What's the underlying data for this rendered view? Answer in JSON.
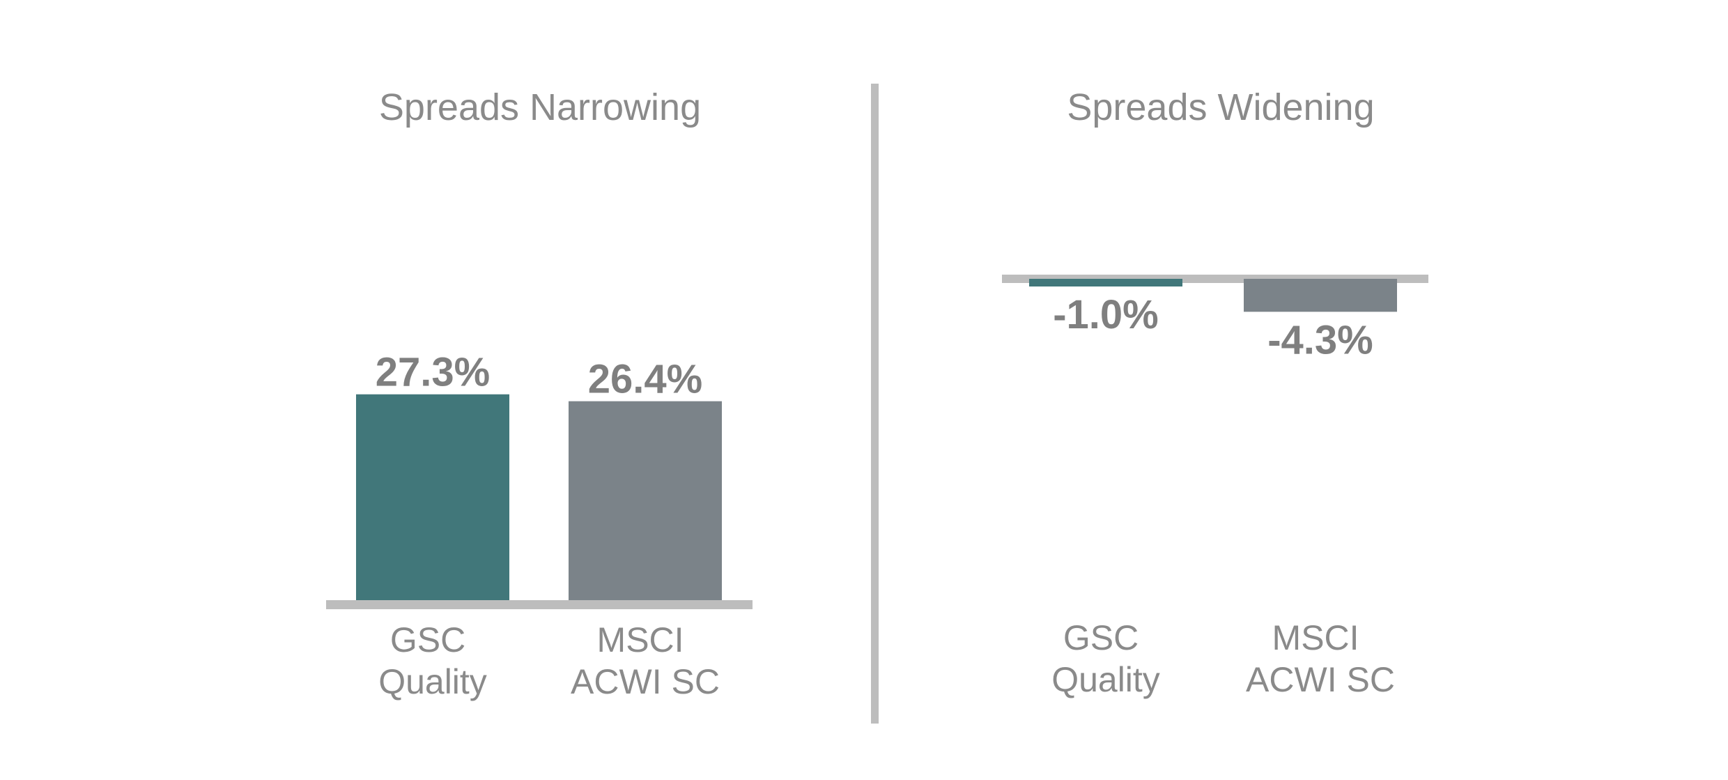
{
  "colors": {
    "gsc_quality": "#41777a",
    "msci_acwi_sc": "#7b8389",
    "baseline": "#bdbdbd",
    "divider": "#bdbdbd",
    "text": "#8a8a8a"
  },
  "chart_data": [
    {
      "type": "bar",
      "title": "Spreads Narrowing",
      "categories": [
        [
          "GSC",
          "Quality"
        ],
        [
          "MSCI",
          "ACWI SC"
        ]
      ],
      "values": [
        27.3,
        26.4
      ],
      "value_labels": [
        "27.3%",
        "26.4%"
      ],
      "series_colors": [
        "#41777a",
        "#7b8389"
      ],
      "grid": false
    },
    {
      "type": "bar",
      "title": "Spreads Widening",
      "categories": [
        [
          "GSC",
          "Quality"
        ],
        [
          "MSCI",
          "ACWI SC"
        ]
      ],
      "values": [
        -1.0,
        -4.3
      ],
      "value_labels": [
        "-1.0%",
        "-4.3%"
      ],
      "series_colors": [
        "#41777a",
        "#7b8389"
      ],
      "grid": false
    }
  ]
}
